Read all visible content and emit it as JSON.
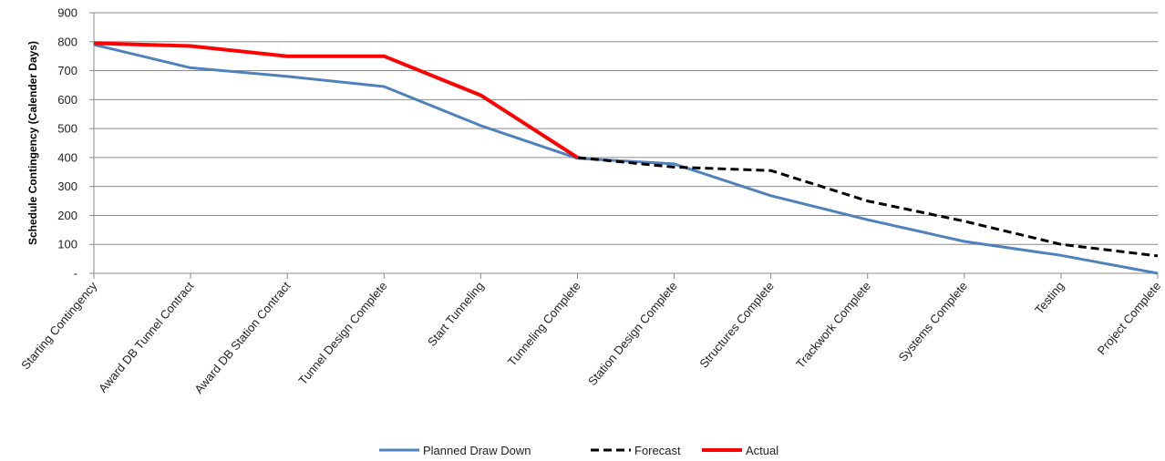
{
  "chart_data": {
    "type": "line",
    "title": "",
    "xlabel": "",
    "ylabel": "Schedule Contingency (Calender Days)",
    "ylim": [
      0,
      900
    ],
    "yticks": [
      0,
      100,
      200,
      300,
      400,
      500,
      600,
      700,
      800,
      900
    ],
    "ytick_labels": [
      "-",
      "100",
      "200",
      "300",
      "400",
      "500",
      "600",
      "700",
      "800",
      "900"
    ],
    "grid": true,
    "legend_position": "bottom",
    "categories": [
      "Starting Contingency",
      "Award DB Tunnel Contract",
      "Award DB Station Contract",
      "Tunnel Design Complete",
      "Start Tunneling",
      "Tunneling Complete",
      "Station Design Complete",
      "Structures Complete",
      "Trackwork Complete",
      "Systems Complete",
      "Testing",
      "Project Complete"
    ],
    "series": [
      {
        "name": "Planned Draw Down",
        "color": "#4f81bd",
        "style": "solid",
        "values": [
          790,
          710,
          680,
          645,
          510,
          397,
          378,
          268,
          185,
          110,
          62,
          0
        ]
      },
      {
        "name": "Forecast",
        "color": "#000000",
        "style": "dashed",
        "values": [
          795,
          785,
          750,
          750,
          615,
          400,
          367,
          355,
          250,
          180,
          100,
          60
        ]
      },
      {
        "name": "Actual",
        "color": "#ff0000",
        "style": "solid",
        "values": [
          795,
          785,
          750,
          750,
          615,
          400,
          null,
          null,
          null,
          null,
          null,
          null
        ]
      }
    ]
  }
}
